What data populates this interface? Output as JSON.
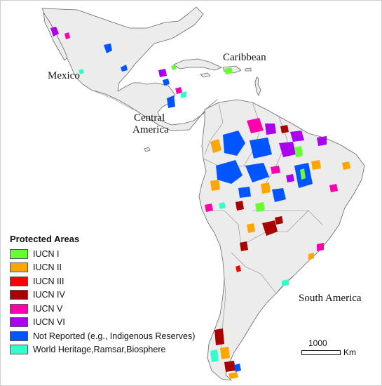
{
  "map": {
    "region_labels": {
      "mexico": "Mexico",
      "caribbean": "Caribbean",
      "central_america_line1": "Central",
      "central_america_line2": "America",
      "south_america": "South America"
    },
    "colors": {
      "land": "#ececec",
      "border": "#777777",
      "water": "#ffffff"
    }
  },
  "legend": {
    "title": "Protected Areas",
    "items": [
      {
        "label": "IUCN I",
        "color": "#66ff33"
      },
      {
        "label": "IUCN II",
        "color": "#ffa500"
      },
      {
        "label": "IUCN III",
        "color": "#ff0000"
      },
      {
        "label": "IUCN IV",
        "color": "#aa0000"
      },
      {
        "label": "IUCN V",
        "color": "#ff00aa"
      },
      {
        "label": "IUCN VI",
        "color": "#aa00ee"
      },
      {
        "label": "Not Reported (e.g., Indigenous Reserves)",
        "color": "#0055ff"
      },
      {
        "label": "World Heritage,Ramsar,Biosphere",
        "color": "#33ffcc"
      }
    ]
  },
  "scale_bar": {
    "value": "1000",
    "unit": "Km"
  }
}
